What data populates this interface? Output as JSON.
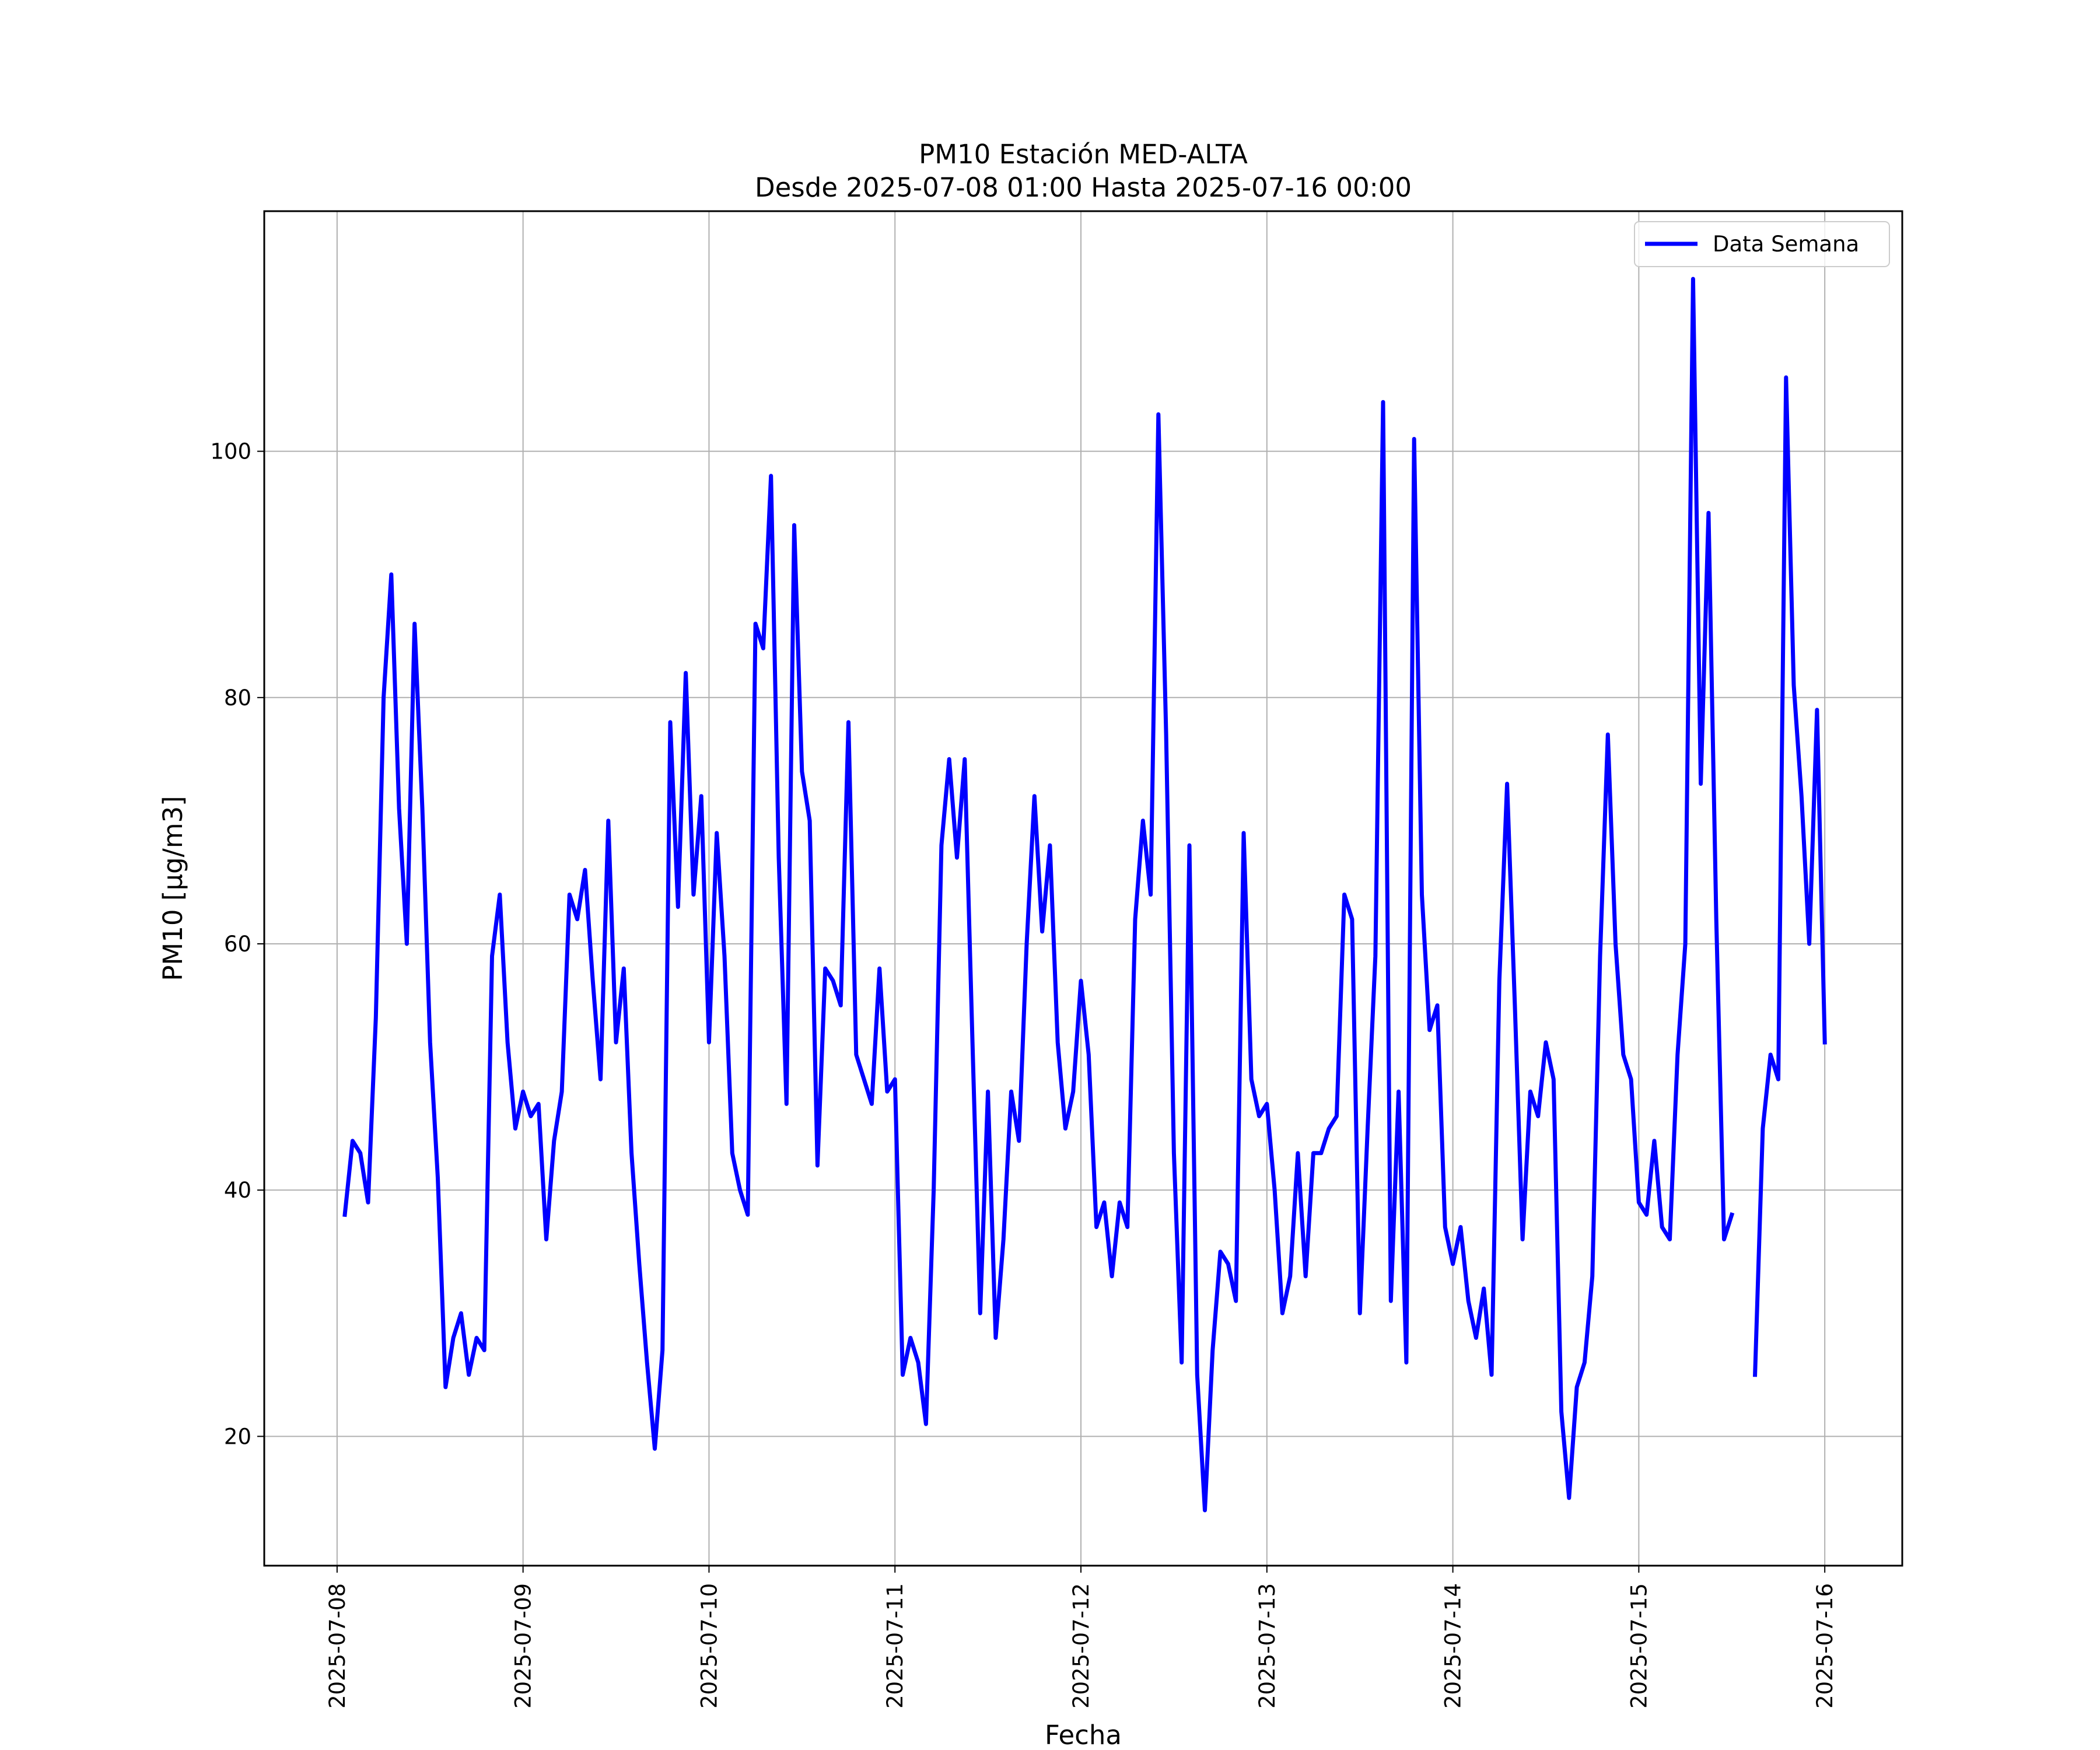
{
  "chart_data": {
    "type": "line",
    "title": "PM10 Estación MED-ALTA",
    "subtitle": "Desde 2025-07-08 01:00 Hasta 2025-07-16 00:00",
    "xlabel": "Fecha",
    "ylabel": "PM10 [μg/m3]",
    "x_start": "2025-07-08 01:00",
    "x_interval_hours": 1,
    "xlim": [
      "2025-07-07 14:36",
      "2025-07-16 10:00"
    ],
    "ylim": [
      9.5,
      119.5
    ],
    "x_ticks": [
      "2025-07-08",
      "2025-07-09",
      "2025-07-10",
      "2025-07-11",
      "2025-07-12",
      "2025-07-13",
      "2025-07-14",
      "2025-07-15",
      "2025-07-16"
    ],
    "y_ticks": [
      20,
      40,
      60,
      80,
      100
    ],
    "grid": true,
    "legend_position": "top-right",
    "series": [
      {
        "name": "Data Semana",
        "color": "#0000ff",
        "values": [
          38,
          44,
          43,
          39,
          54,
          80,
          90,
          71,
          60,
          86,
          71,
          52,
          41,
          24,
          28,
          30,
          25,
          28,
          27,
          59,
          64,
          52,
          45,
          48,
          46,
          47,
          36,
          44,
          48,
          64,
          62,
          66,
          57,
          49,
          70,
          52,
          58,
          43,
          34,
          26,
          19,
          27,
          78,
          63,
          82,
          64,
          72,
          52,
          69,
          59,
          43,
          40,
          38,
          86,
          84,
          98,
          67,
          47,
          94,
          74,
          70,
          42,
          58,
          57,
          55,
          78,
          51,
          49,
          47,
          58,
          48,
          49,
          25,
          28,
          26,
          21,
          40,
          68,
          75,
          67,
          75,
          52,
          30,
          48,
          28,
          36,
          48,
          44,
          60,
          72,
          61,
          68,
          52,
          45,
          48,
          57,
          51,
          37,
          39,
          33,
          39,
          37,
          62,
          70,
          64,
          103,
          77,
          43,
          26,
          68,
          25,
          14,
          27,
          35,
          34,
          31,
          69,
          49,
          46,
          47,
          40,
          30,
          33,
          43,
          33,
          43,
          43,
          45,
          46,
          64,
          62,
          30,
          45,
          59,
          104,
          31,
          48,
          26,
          101,
          64,
          53,
          55,
          37,
          34,
          37,
          31,
          28,
          32,
          25,
          57,
          73,
          55,
          36,
          48,
          46,
          52,
          49,
          22,
          15,
          24,
          26,
          33,
          59,
          77,
          60,
          51,
          49,
          39,
          38,
          44,
          37,
          36,
          51,
          60,
          114,
          73,
          95,
          62,
          36,
          38,
          null,
          null,
          25,
          45,
          51,
          49,
          106,
          81,
          72,
          60,
          79,
          52
        ]
      }
    ]
  }
}
